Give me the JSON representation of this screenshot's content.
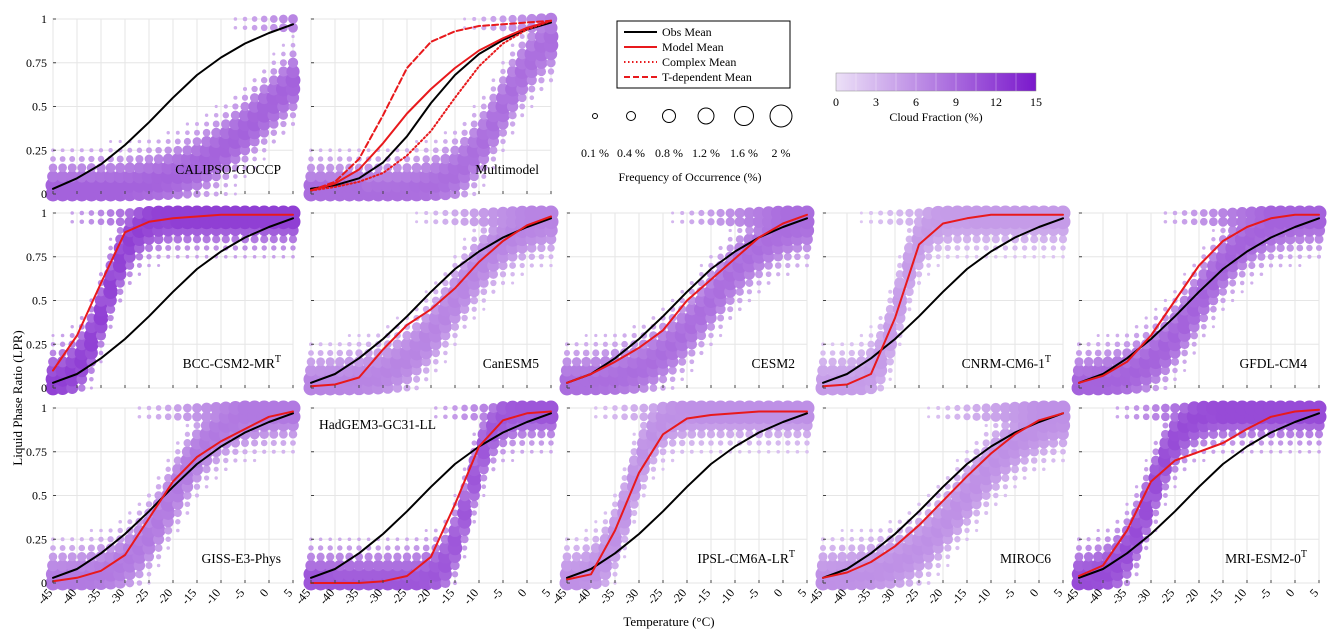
{
  "figure": {
    "ylabel": "Liquid Phase Ratio (LPR)",
    "xlabel": "Temperature (°C)"
  },
  "legend": {
    "lines": [
      {
        "label": "Obs Mean",
        "color": "#000000",
        "style": "solid"
      },
      {
        "label": "Model Mean",
        "color": "#e8191c",
        "style": "solid"
      },
      {
        "label": "Complex Mean",
        "color": "#e8191c",
        "style": "dotted"
      },
      {
        "label": "T-dependent Mean",
        "color": "#e8191c",
        "style": "dashed"
      }
    ]
  },
  "size_legend": {
    "title": "Frequency of Occurrence (%)",
    "labels": [
      "0.1 %",
      "0.4 %",
      "0.8 %",
      "1.2 %",
      "1.6 %",
      "2 %"
    ],
    "values": [
      0.1,
      0.4,
      0.8,
      1.2,
      1.6,
      2.0
    ]
  },
  "colorbar": {
    "title": "Cloud Fraction (%)",
    "tick_labels": [
      "0",
      "3",
      "6",
      "9",
      "12",
      "15"
    ],
    "range": [
      0,
      15
    ],
    "color_low": "#ece0f7",
    "color_high": "#7a18cc"
  },
  "chart_data": [
    {
      "type": "scatter",
      "title": "CALIPSO-GOCCP",
      "superscript": "",
      "xlim": [
        -45,
        5
      ],
      "ylim": [
        0,
        1
      ],
      "dot_center": 0.0,
      "dot_slope": 0.11,
      "cf_level": 0.55,
      "series": [
        {
          "name": "Obs Mean",
          "x": [
            -45,
            -40,
            -35,
            -30,
            -25,
            -20,
            -15,
            -10,
            -5,
            0,
            5
          ],
          "y": [
            0.03,
            0.09,
            0.17,
            0.28,
            0.41,
            0.55,
            0.68,
            0.78,
            0.86,
            0.92,
            0.97
          ]
        }
      ]
    },
    {
      "type": "scatter",
      "title": "Multimodel",
      "superscript": "",
      "xlim": [
        -45,
        5
      ],
      "ylim": [
        0,
        1
      ],
      "dot_center": -5.0,
      "dot_slope": 0.2,
      "cf_level": 0.5,
      "series": [
        {
          "name": "Obs Mean",
          "x": [
            -45,
            -40,
            -35,
            -30,
            -25,
            -20,
            -15,
            -10,
            -5,
            0,
            5
          ],
          "y": [
            0.03,
            0.05,
            0.09,
            0.18,
            0.33,
            0.52,
            0.68,
            0.8,
            0.88,
            0.94,
            0.98
          ]
        },
        {
          "name": "Model Mean",
          "x": [
            -45,
            -40,
            -35,
            -30,
            -25,
            -20,
            -15,
            -10,
            -5,
            0,
            5
          ],
          "y": [
            0.02,
            0.06,
            0.14,
            0.29,
            0.46,
            0.6,
            0.72,
            0.82,
            0.89,
            0.95,
            0.99
          ]
        },
        {
          "name": "Complex Mean",
          "x": [
            -45,
            -40,
            -35,
            -30,
            -25,
            -20,
            -15,
            -10,
            -5,
            0,
            5
          ],
          "y": [
            0.02,
            0.04,
            0.07,
            0.12,
            0.22,
            0.36,
            0.55,
            0.73,
            0.86,
            0.94,
            0.99
          ]
        },
        {
          "name": "T-dependent Mean",
          "x": [
            -45,
            -40,
            -35,
            -30,
            -25,
            -20,
            -15,
            -10,
            -5,
            0,
            5
          ],
          "y": [
            0.02,
            0.07,
            0.2,
            0.45,
            0.72,
            0.87,
            0.93,
            0.96,
            0.97,
            0.98,
            0.99
          ]
        }
      ]
    },
    {
      "type": "scatter",
      "title": "BCC-CSM2-MR",
      "superscript": "T",
      "xlim": [
        -45,
        5
      ],
      "ylim": [
        0,
        1
      ],
      "dot_center": -34.0,
      "dot_slope": 0.33,
      "cf_level": 0.7,
      "series": [
        {
          "name": "Obs Mean",
          "x": [
            -45,
            -40,
            -35,
            -30,
            -25,
            -20,
            -15,
            -10,
            -5,
            0,
            5
          ],
          "y": [
            0.03,
            0.08,
            0.17,
            0.28,
            0.41,
            0.55,
            0.68,
            0.78,
            0.86,
            0.92,
            0.97
          ]
        },
        {
          "name": "Model Mean",
          "x": [
            -45,
            -40,
            -35,
            -30,
            -25,
            -20,
            -15,
            -10,
            -5,
            0,
            5
          ],
          "y": [
            0.1,
            0.3,
            0.6,
            0.89,
            0.95,
            0.97,
            0.98,
            0.99,
            0.99,
            0.99,
            0.99
          ]
        }
      ]
    },
    {
      "type": "scatter",
      "title": "CanESM5",
      "superscript": "",
      "xlim": [
        -45,
        5
      ],
      "ylim": [
        0,
        1
      ],
      "dot_center": -15.0,
      "dot_slope": 0.16,
      "cf_level": 0.4,
      "series": [
        {
          "name": "Obs Mean",
          "x": [
            -45,
            -40,
            -35,
            -30,
            -25,
            -20,
            -15,
            -10,
            -5,
            0,
            5
          ],
          "y": [
            0.03,
            0.08,
            0.17,
            0.28,
            0.41,
            0.55,
            0.68,
            0.78,
            0.86,
            0.92,
            0.97
          ]
        },
        {
          "name": "Model Mean",
          "x": [
            -45,
            -40,
            -35,
            -30,
            -25,
            -20,
            -15,
            -10,
            -5,
            0,
            5
          ],
          "y": [
            0.01,
            0.02,
            0.06,
            0.22,
            0.36,
            0.45,
            0.57,
            0.72,
            0.84,
            0.93,
            0.98
          ]
        }
      ]
    },
    {
      "type": "scatter",
      "title": "CESM2",
      "superscript": "",
      "xlim": [
        -45,
        5
      ],
      "ylim": [
        0,
        1
      ],
      "dot_center": -15.0,
      "dot_slope": 0.14,
      "cf_level": 0.5,
      "series": [
        {
          "name": "Obs Mean",
          "x": [
            -45,
            -40,
            -35,
            -30,
            -25,
            -20,
            -15,
            -10,
            -5,
            0,
            5
          ],
          "y": [
            0.03,
            0.08,
            0.17,
            0.28,
            0.41,
            0.55,
            0.68,
            0.78,
            0.86,
            0.92,
            0.97
          ]
        },
        {
          "name": "Model Mean",
          "x": [
            -45,
            -40,
            -35,
            -30,
            -25,
            -20,
            -15,
            -10,
            -5,
            0,
            5
          ],
          "y": [
            0.03,
            0.08,
            0.15,
            0.23,
            0.33,
            0.5,
            0.62,
            0.74,
            0.86,
            0.94,
            0.99
          ]
        }
      ]
    },
    {
      "type": "scatter",
      "title": "CNRM-CM6-1",
      "superscript": "T",
      "xlim": [
        -45,
        5
      ],
      "ylim": [
        0,
        1
      ],
      "dot_center": -29.0,
      "dot_slope": 0.4,
      "cf_level": 0.3,
      "series": [
        {
          "name": "Obs Mean",
          "x": [
            -45,
            -40,
            -35,
            -30,
            -25,
            -20,
            -15,
            -10,
            -5,
            0,
            5
          ],
          "y": [
            0.03,
            0.08,
            0.17,
            0.28,
            0.41,
            0.55,
            0.68,
            0.78,
            0.86,
            0.92,
            0.97
          ]
        },
        {
          "name": "Model Mean",
          "x": [
            -45,
            -40,
            -35,
            -30,
            -25,
            -20,
            -15,
            -10,
            -5,
            0,
            5
          ],
          "y": [
            0.01,
            0.02,
            0.08,
            0.4,
            0.82,
            0.94,
            0.97,
            0.99,
            0.99,
            0.99,
            0.99
          ]
        }
      ]
    },
    {
      "type": "scatter",
      "title": "GFDL-CM4",
      "superscript": "",
      "xlim": [
        -45,
        5
      ],
      "ylim": [
        0,
        1
      ],
      "dot_center": -20.0,
      "dot_slope": 0.17,
      "cf_level": 0.55,
      "series": [
        {
          "name": "Obs Mean",
          "x": [
            -45,
            -40,
            -35,
            -30,
            -25,
            -20,
            -15,
            -10,
            -5,
            0,
            5
          ],
          "y": [
            0.03,
            0.08,
            0.17,
            0.28,
            0.41,
            0.55,
            0.68,
            0.78,
            0.86,
            0.92,
            0.97
          ]
        },
        {
          "name": "Model Mean",
          "x": [
            -45,
            -40,
            -35,
            -30,
            -25,
            -20,
            -15,
            -10,
            -5,
            0,
            5
          ],
          "y": [
            0.03,
            0.07,
            0.15,
            0.3,
            0.5,
            0.7,
            0.84,
            0.92,
            0.97,
            0.99,
            0.99
          ]
        }
      ]
    },
    {
      "type": "scatter",
      "title": "GISS-E3-Phys",
      "superscript": "",
      "xlim": [
        -45,
        5
      ],
      "ylim": [
        0,
        1
      ],
      "dot_center": -20.0,
      "dot_slope": 0.2,
      "cf_level": 0.45,
      "series": [
        {
          "name": "Obs Mean",
          "x": [
            -45,
            -40,
            -35,
            -30,
            -25,
            -20,
            -15,
            -10,
            -5,
            0,
            5
          ],
          "y": [
            0.03,
            0.08,
            0.17,
            0.28,
            0.41,
            0.55,
            0.68,
            0.78,
            0.86,
            0.92,
            0.97
          ]
        },
        {
          "name": "Model Mean",
          "x": [
            -45,
            -40,
            -35,
            -30,
            -25,
            -20,
            -15,
            -10,
            -5,
            0,
            5
          ],
          "y": [
            0.01,
            0.03,
            0.07,
            0.16,
            0.37,
            0.58,
            0.72,
            0.81,
            0.88,
            0.95,
            0.98
          ]
        }
      ]
    },
    {
      "type": "scatter",
      "title": "HadGEM3-GC31-LL",
      "superscript": "",
      "xlim": [
        -45,
        5
      ],
      "ylim": [
        0,
        1
      ],
      "dot_center": -12.0,
      "dot_slope": 0.4,
      "cf_level": 0.6,
      "series": [
        {
          "name": "Obs Mean",
          "x": [
            -45,
            -40,
            -35,
            -30,
            -25,
            -20,
            -15,
            -10,
            -5,
            0,
            5
          ],
          "y": [
            0.03,
            0.08,
            0.17,
            0.28,
            0.41,
            0.55,
            0.68,
            0.78,
            0.86,
            0.92,
            0.97
          ]
        },
        {
          "name": "Model Mean",
          "x": [
            -45,
            -40,
            -35,
            -30,
            -25,
            -20,
            -15,
            -10,
            -5,
            0,
            5
          ],
          "y": [
            0.0,
            0.0,
            0.0,
            0.01,
            0.04,
            0.15,
            0.45,
            0.78,
            0.93,
            0.97,
            0.98
          ]
        }
      ]
    },
    {
      "type": "scatter",
      "title": "IPSL-CM6A-LR",
      "superscript": "T",
      "xlim": [
        -45,
        5
      ],
      "ylim": [
        0,
        1
      ],
      "dot_center": -32.0,
      "dot_slope": 0.35,
      "cf_level": 0.35,
      "series": [
        {
          "name": "Obs Mean",
          "x": [
            -45,
            -40,
            -35,
            -30,
            -25,
            -20,
            -15,
            -10,
            -5,
            0,
            5
          ],
          "y": [
            0.03,
            0.08,
            0.17,
            0.28,
            0.41,
            0.55,
            0.68,
            0.78,
            0.86,
            0.92,
            0.97
          ]
        },
        {
          "name": "Model Mean",
          "x": [
            -45,
            -40,
            -35,
            -30,
            -25,
            -20,
            -15,
            -10,
            -5,
            0,
            5
          ],
          "y": [
            0.02,
            0.05,
            0.3,
            0.63,
            0.85,
            0.94,
            0.96,
            0.97,
            0.98,
            0.98,
            0.98
          ]
        }
      ]
    },
    {
      "type": "scatter",
      "title": "MIROC6",
      "superscript": "",
      "xlim": [
        -45,
        5
      ],
      "ylim": [
        0,
        1
      ],
      "dot_center": -15.0,
      "dot_slope": 0.14,
      "cf_level": 0.35,
      "series": [
        {
          "name": "Obs Mean",
          "x": [
            -45,
            -40,
            -35,
            -30,
            -25,
            -20,
            -15,
            -10,
            -5,
            0,
            5
          ],
          "y": [
            0.03,
            0.08,
            0.17,
            0.28,
            0.41,
            0.55,
            0.68,
            0.78,
            0.86,
            0.92,
            0.97
          ]
        },
        {
          "name": "Model Mean",
          "x": [
            -45,
            -40,
            -35,
            -30,
            -25,
            -20,
            -15,
            -10,
            -5,
            0,
            5
          ],
          "y": [
            0.03,
            0.06,
            0.12,
            0.21,
            0.33,
            0.47,
            0.61,
            0.74,
            0.85,
            0.93,
            0.97
          ]
        }
      ]
    },
    {
      "type": "scatter",
      "title": "MRI-ESM2-0",
      "superscript": "T",
      "xlim": [
        -45,
        5
      ],
      "ylim": [
        0,
        1
      ],
      "dot_center": -30.0,
      "dot_slope": 0.3,
      "cf_level": 0.65,
      "series": [
        {
          "name": "Obs Mean",
          "x": [
            -45,
            -40,
            -35,
            -30,
            -25,
            -20,
            -15,
            -10,
            -5,
            0,
            5
          ],
          "y": [
            0.03,
            0.08,
            0.17,
            0.28,
            0.41,
            0.55,
            0.68,
            0.78,
            0.86,
            0.92,
            0.97
          ]
        },
        {
          "name": "Model Mean",
          "x": [
            -45,
            -40,
            -35,
            -30,
            -25,
            -20,
            -15,
            -10,
            -5,
            0,
            5
          ],
          "y": [
            0.04,
            0.1,
            0.3,
            0.58,
            0.7,
            0.75,
            0.8,
            0.88,
            0.95,
            0.98,
            0.99
          ]
        }
      ]
    }
  ],
  "axes": {
    "xticks": [
      -45,
      -40,
      -35,
      -30,
      -25,
      -20,
      -15,
      -10,
      -5,
      0,
      5
    ],
    "xtick_labels": [
      "-45",
      "-40",
      "-35",
      "-30",
      "-25",
      "-20",
      "-15",
      "-10",
      "-5",
      "0",
      "5"
    ],
    "yticks": [
      0,
      0.25,
      0.5,
      0.75,
      1
    ],
    "ytick_labels": [
      "0",
      "0.25",
      "0.5",
      "0.75",
      "1"
    ]
  }
}
